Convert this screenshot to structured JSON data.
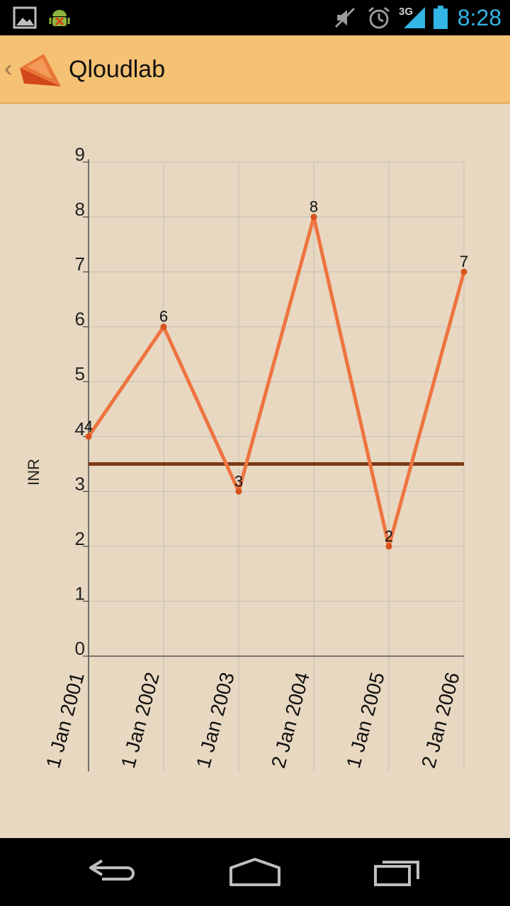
{
  "status_bar": {
    "time": "8:28",
    "network": "3G",
    "icons": [
      "picture-icon",
      "android-debug-icon",
      "mute-icon",
      "alarm-icon",
      "signal-icon",
      "battery-icon"
    ]
  },
  "action_bar": {
    "title": "Qloudlab",
    "icon": "qloudlab-logo-icon"
  },
  "chart_data": {
    "type": "line",
    "ylabel": "INR",
    "xlabel": "",
    "ylim": [
      0,
      9
    ],
    "yticks": [
      0,
      1,
      2,
      3,
      4,
      5,
      6,
      7,
      8,
      9
    ],
    "grid": true,
    "categories": [
      "1 Jan 2001",
      "1 Jan 2002",
      "1 Jan 2003",
      "2 Jan 2004",
      "1 Jan 2005",
      "2 Jan 2006"
    ],
    "series": [
      {
        "values": [
          4,
          6,
          3,
          8,
          2,
          7
        ],
        "color": "#ee7440"
      }
    ],
    "data_labels": [
      "4",
      "6",
      "3",
      "8",
      "2",
      "7"
    ],
    "reference_line": {
      "value": 3.5,
      "color": "#7a3a18"
    }
  },
  "nav_bar": {
    "buttons": [
      "back-icon",
      "home-icon",
      "recent-apps-icon"
    ]
  }
}
